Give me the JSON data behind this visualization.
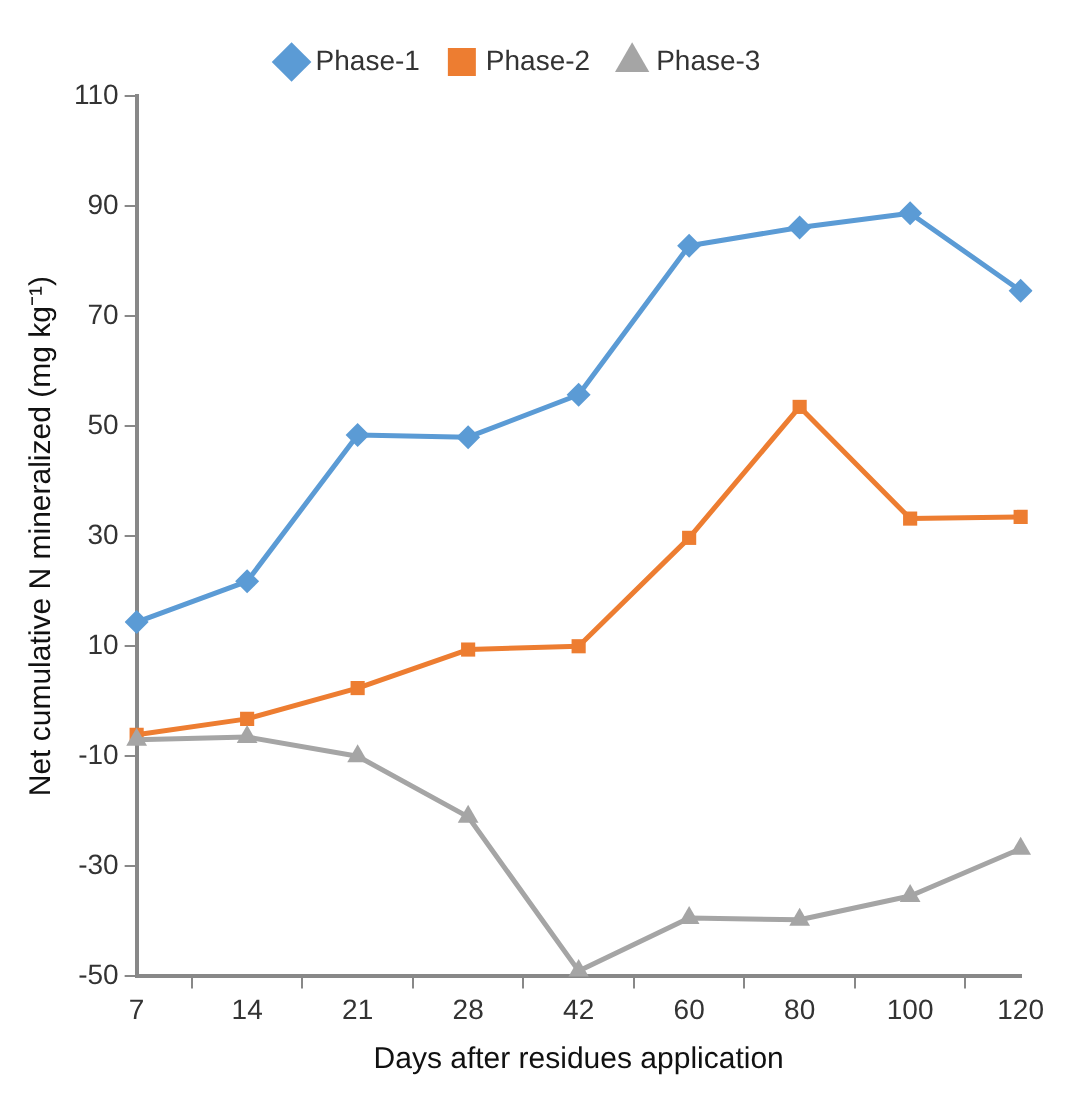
{
  "chart_data": {
    "type": "line",
    "xlabel": "Days after residues application",
    "ylabel": "Net cumulative N mineralized (mg kg⁻¹)",
    "categories": [
      "7",
      "14",
      "21",
      "28",
      "42",
      "60",
      "80",
      "100",
      "120"
    ],
    "series": [
      {
        "name": "Phase-1",
        "color": "#5b9bd5",
        "marker": "diamond",
        "values": [
          14.4,
          21.8,
          48.4,
          48,
          55.7,
          82.8,
          86.1,
          88.7,
          74.6
        ]
      },
      {
        "name": "Phase-2",
        "color": "#ed7d31",
        "marker": "square",
        "values": [
          -6.1,
          -3.2,
          2.4,
          9.4,
          10,
          29.7,
          53.5,
          33.2,
          33.5
        ]
      },
      {
        "name": "Phase-3",
        "color": "#a5a5a5",
        "marker": "triangle",
        "values": [
          -7,
          -6.5,
          -10,
          -21,
          -49,
          -39.4,
          -39.7,
          -35.4,
          -26.8
        ]
      }
    ],
    "ylim": [
      -50,
      110
    ],
    "yticks": [
      -50,
      -30,
      -10,
      10,
      30,
      50,
      70,
      90,
      110
    ],
    "grid": false,
    "legend": "top",
    "line_style": "solid"
  }
}
